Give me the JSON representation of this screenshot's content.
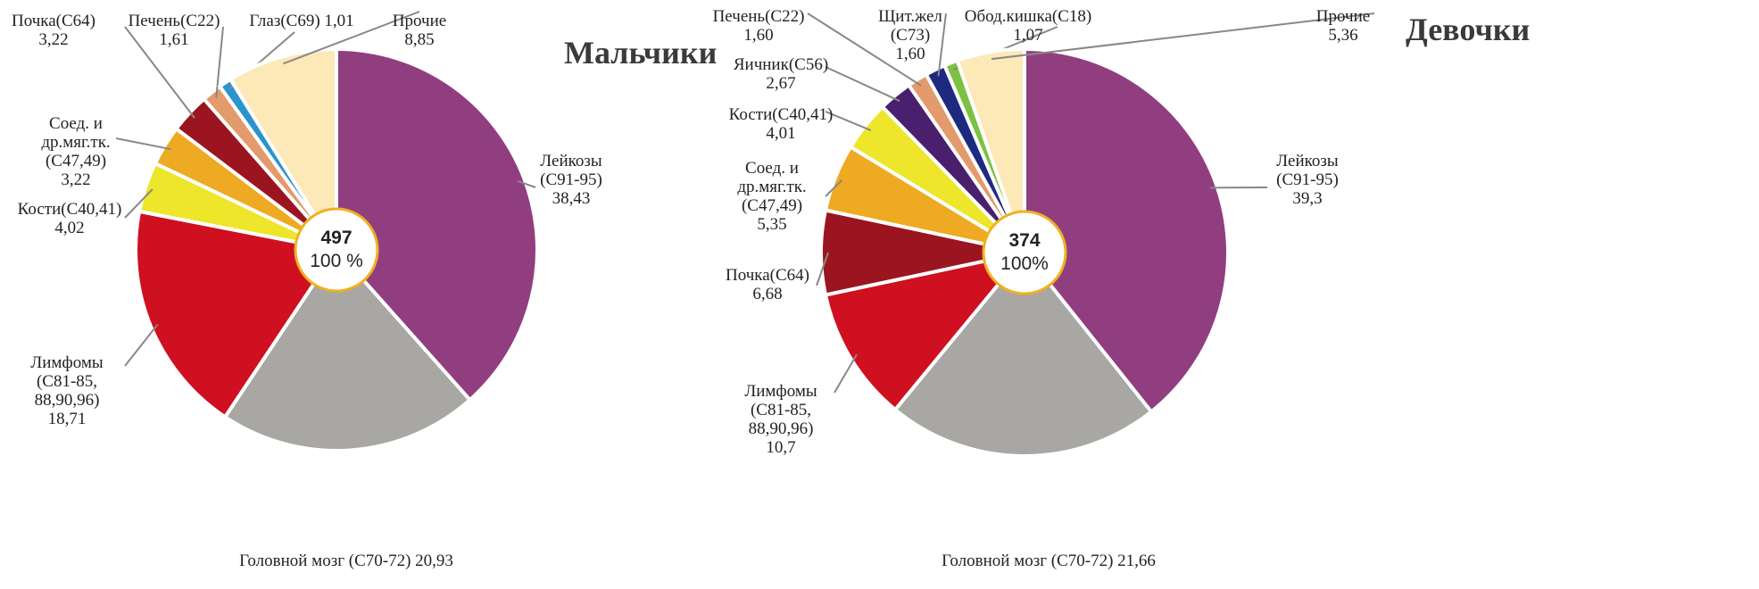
{
  "chart_data": [
    {
      "type": "pie",
      "title": "Мальчики",
      "center_total": "497",
      "center_percent": "100 %",
      "slices": [
        {
          "lines": [
            "Лейкозы",
            "(C91-95)",
            "38,43"
          ],
          "value": 38.43,
          "color": "#913e80"
        },
        {
          "lines": [
            "Головной мозг  (C70-72)  20,93"
          ],
          "value": 20.93,
          "color": "#a8a7a3"
        },
        {
          "lines": [
            "Лимфомы",
            "(C81-85,",
            "88,90,96)",
            "18,71"
          ],
          "value": 18.71,
          "color": "#cf1020"
        },
        {
          "lines": [
            "Кости(C40,41)",
            "4,02"
          ],
          "value": 4.02,
          "color": "#ede62a"
        },
        {
          "lines": [
            "Соед. и",
            "др.мяг.тк.",
            "(C47,49)",
            "3,22"
          ],
          "value": 3.22,
          "color": "#eeaa22"
        },
        {
          "lines": [
            "Почка(C64)",
            "3,22"
          ],
          "value": 3.22,
          "color": "#9b1520"
        },
        {
          "lines": [
            "Печень(C22)",
            "1,61"
          ],
          "value": 1.61,
          "color": "#e39a6c"
        },
        {
          "lines": [
            "Глаз(C69) 1,01"
          ],
          "value": 1.01,
          "color": "#2a94cc"
        },
        {
          "lines": [
            "Прочие",
            "8,85"
          ],
          "value": 8.85,
          "color": "#fde9b8"
        }
      ]
    },
    {
      "type": "pie",
      "title": "Девочки",
      "center_total": "374",
      "center_percent": "100%",
      "slices": [
        {
          "lines": [
            "Лейкозы",
            "(C91-95)",
            "39,3"
          ],
          "value": 39.3,
          "color": "#913e80"
        },
        {
          "lines": [
            "Головной мозг  (C70-72)  21,66"
          ],
          "value": 21.66,
          "color": "#a8a7a3"
        },
        {
          "lines": [
            "Лимфомы",
            "(C81-85,",
            "88,90,96)",
            "10,7"
          ],
          "value": 10.7,
          "color": "#cf1020"
        },
        {
          "lines": [
            "Почка(C64)",
            "6,68"
          ],
          "value": 6.68,
          "color": "#9b1520"
        },
        {
          "lines": [
            "Соед. и",
            "др.мяг.тк.",
            "(C47,49)",
            "5,35"
          ],
          "value": 5.35,
          "color": "#eeaa22"
        },
        {
          "lines": [
            "Кости(C40,41)",
            "4,01"
          ],
          "value": 4.01,
          "color": "#ede62a"
        },
        {
          "lines": [
            "Яичник(C56)",
            "2,67"
          ],
          "value": 2.67,
          "color": "#4a1f6e"
        },
        {
          "lines": [
            "Печень(C22)",
            "1,60"
          ],
          "value": 1.6,
          "color": "#e39a6c"
        },
        {
          "lines": [
            "Щит.жел",
            "(C73)",
            "1,60"
          ],
          "value": 1.6,
          "color": "#1e2a80"
        },
        {
          "lines": [
            "Обод.кишка(C18)",
            "1,07"
          ],
          "value": 1.07,
          "color": "#7cc242"
        },
        {
          "lines": [
            "Прочие",
            "5,36"
          ],
          "value": 5.36,
          "color": "#fde9b8"
        }
      ]
    }
  ]
}
